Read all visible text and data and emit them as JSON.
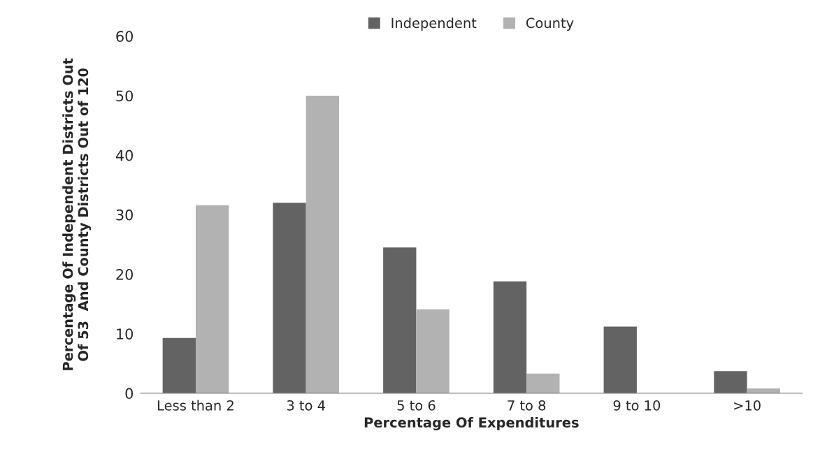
{
  "chart_data": {
    "type": "bar",
    "xlabel": "Percentage Of Expenditures",
    "ylabel": "Percentage Of Independent Districts Out\nOf 53  And County Districts Out of 120",
    "categories": [
      "Less than 2",
      "3 to 4",
      "5 to 6",
      "7 to 8",
      "9 to 10",
      ">10"
    ],
    "series": [
      {
        "name": "Independent",
        "color": "#636363",
        "values": [
          9.3,
          32.0,
          24.5,
          18.8,
          11.2,
          3.7
        ]
      },
      {
        "name": "County",
        "color": "#b2b2b2",
        "values": [
          31.6,
          50.0,
          14.1,
          3.3,
          null,
          0.8
        ]
      }
    ],
    "ylim": [
      0,
      60
    ],
    "yticks": [
      0,
      10,
      20,
      30,
      40,
      50,
      60
    ],
    "grid": false,
    "legend": "top"
  }
}
